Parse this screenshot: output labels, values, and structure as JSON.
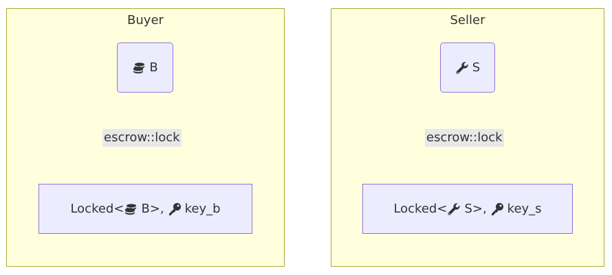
{
  "clusters": {
    "buyer": {
      "title": "Buyer",
      "source_node": {
        "icon": "coins-icon",
        "label": "B"
      },
      "edge_label": "escrow::lock",
      "target_node": {
        "prefix": "Locked<",
        "inner_icon": "coins-icon",
        "inner_label": "B>,",
        "key_icon": "key-icon",
        "key_label": "key_b"
      }
    },
    "seller": {
      "title": "Seller",
      "source_node": {
        "icon": "wrench-icon",
        "label": "S"
      },
      "edge_label": "escrow::lock",
      "target_node": {
        "prefix": "Locked<",
        "inner_icon": "wrench-icon",
        "inner_label": "S>,",
        "key_icon": "key-icon",
        "key_label": "key_s"
      }
    }
  },
  "colors": {
    "cluster_fill": "#ffffde",
    "cluster_border": "#aaaa33",
    "node_fill": "#ececff",
    "node_border": "#9370db",
    "edge": "#333333",
    "edge_label_bg": "#e8e8e8"
  }
}
